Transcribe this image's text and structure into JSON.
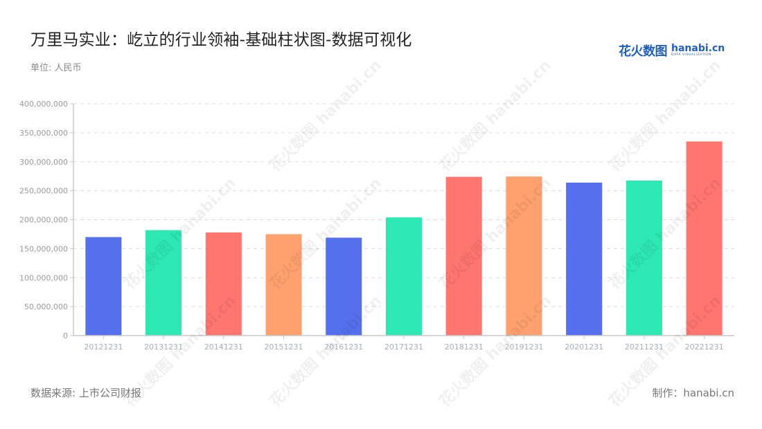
{
  "header": {
    "title": "万里马实业：屹立的行业领袖-基础柱状图-数据可视化",
    "unit": "单位: 人民币"
  },
  "logo": {
    "cn": "花火数图",
    "en": "hanabi.cn",
    "sub": "DATA VISUALIZATION"
  },
  "footer": {
    "source": "数据来源: 上市公司财报",
    "maker": "制作：hanabi.cn"
  },
  "watermark": "花火数图 hanabi.cn",
  "chart_data": {
    "type": "bar",
    "title": "万里马实业：屹立的行业领袖-基础柱状图-数据可视化",
    "subtitle": "单位: 人民币",
    "xlabel": "",
    "ylabel": "",
    "ylim": [
      0,
      400000000
    ],
    "yticks": [
      0,
      50000000,
      100000000,
      150000000,
      200000000,
      250000000,
      300000000,
      350000000,
      400000000
    ],
    "ytick_labels": [
      "0",
      "50,000,000",
      "100,000,000",
      "150,000,000",
      "200,000,000",
      "250,000,000",
      "300,000,000",
      "350,000,000",
      "400,000,000"
    ],
    "grid": true,
    "legend": "none",
    "categories": [
      "20121231",
      "20131231",
      "20141231",
      "20151231",
      "20161231",
      "20171231",
      "20181231",
      "20191231",
      "20201231",
      "20211231",
      "20221231"
    ],
    "values": [
      170000000,
      182000000,
      178000000,
      175000000,
      169000000,
      204000000,
      274000000,
      274500000,
      264000000,
      267500000,
      335000000
    ],
    "colors": [
      "#5470ed",
      "#2ee8b4",
      "#ff7570",
      "#ffa16f",
      "#5470ed",
      "#2ee8b4",
      "#ff7570",
      "#ffa16f",
      "#5470ed",
      "#2ee8b4",
      "#ff7570"
    ]
  }
}
